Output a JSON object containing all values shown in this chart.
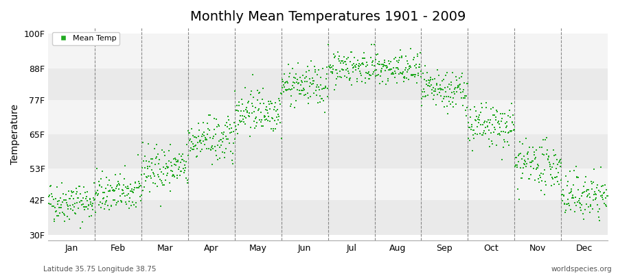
{
  "title": "Monthly Mean Temperatures 1901 - 2009",
  "ylabel": "Temperature",
  "footer_left": "Latitude 35.75 Longitude 38.75",
  "footer_right": "worldspecies.org",
  "legend_label": "Mean Temp",
  "dot_color": "#22AA22",
  "background_color": "#FFFFFF",
  "band_color_light": "#F4F4F4",
  "band_color_dark": "#EAEAEA",
  "yticks": [
    30,
    42,
    53,
    65,
    77,
    88,
    100
  ],
  "ytick_labels": [
    "30F",
    "42F",
    "53F",
    "65F",
    "77F",
    "88F",
    "100F"
  ],
  "ylim": [
    28,
    102
  ],
  "months": [
    "Jan",
    "Feb",
    "Mar",
    "Apr",
    "May",
    "Jun",
    "Jul",
    "Aug",
    "Sep",
    "Oct",
    "Nov",
    "Dec"
  ],
  "monthly_means": [
    41.5,
    44.5,
    53.0,
    63.0,
    73.5,
    82.0,
    88.5,
    87.5,
    80.0,
    67.5,
    54.0,
    43.5
  ],
  "monthly_stds": [
    3.5,
    3.5,
    4.0,
    4.0,
    4.0,
    3.5,
    3.0,
    3.0,
    3.5,
    4.0,
    4.0,
    4.0
  ],
  "n_years": 109,
  "seed": 42
}
